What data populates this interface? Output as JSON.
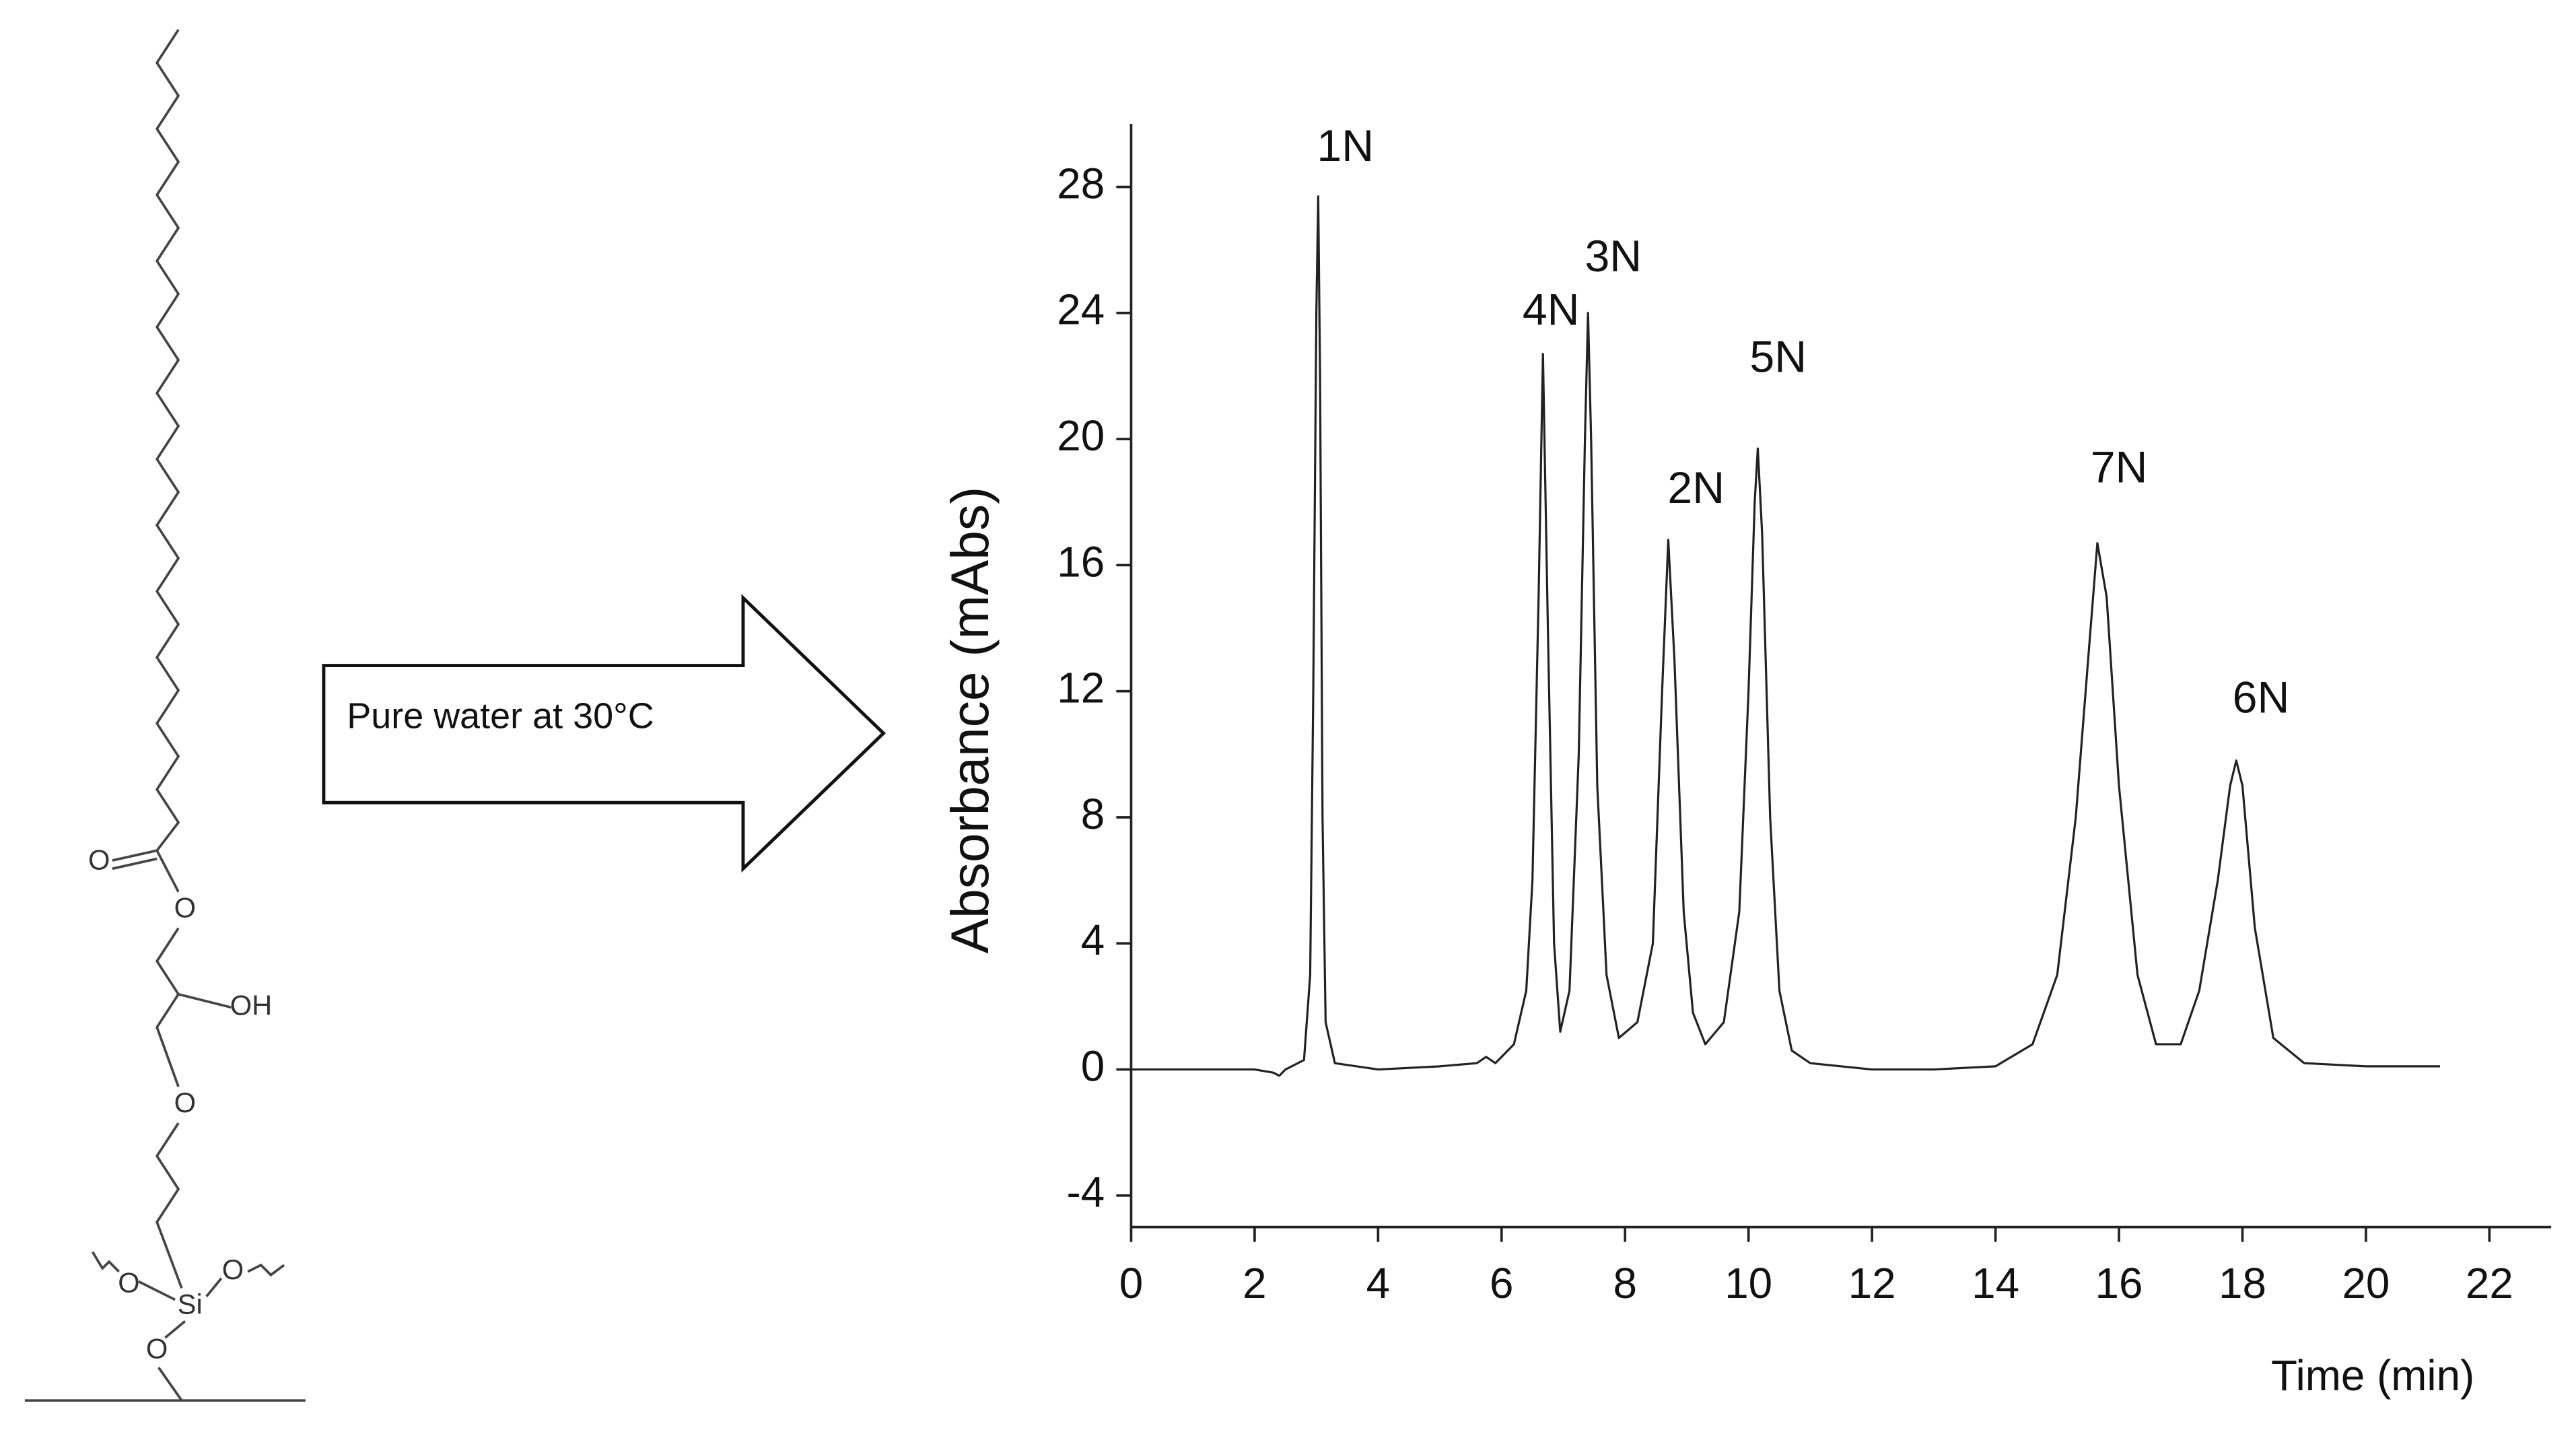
{
  "structure": {
    "atoms": [
      "O",
      "O",
      "OH",
      "O",
      "O",
      "Si",
      "O",
      "O"
    ]
  },
  "arrow_label": "Pure water at 30°C",
  "chart_data": {
    "type": "line",
    "x_label": "Time (min)",
    "y_label": "Absorbance (mAbs)",
    "xlim": [
      0,
      23
    ],
    "ylim": [
      -5,
      30
    ],
    "xticks": [
      0,
      2,
      4,
      6,
      8,
      10,
      12,
      14,
      16,
      18,
      20,
      22
    ],
    "yticks": [
      -4,
      0,
      4,
      8,
      12,
      16,
      20,
      24,
      28
    ],
    "series": [
      {
        "color": "#222222",
        "x": [
          0,
          1,
          2,
          2.3,
          2.4,
          2.5,
          2.8,
          2.9,
          2.95,
          3.0,
          3.03,
          3.06,
          3.1,
          3.15,
          3.3,
          4,
          5,
          5.6,
          5.75,
          5.9,
          6.2,
          6.4,
          6.5,
          6.6,
          6.67,
          6.75,
          6.85,
          6.95,
          7.1,
          7.25,
          7.35,
          7.4,
          7.45,
          7.55,
          7.7,
          7.9,
          8.2,
          8.45,
          8.6,
          8.7,
          8.8,
          8.95,
          9.1,
          9.3,
          9.6,
          9.85,
          10.0,
          10.1,
          10.15,
          10.22,
          10.35,
          10.5,
          10.7,
          11,
          12,
          13,
          14,
          14.6,
          15.0,
          15.3,
          15.5,
          15.65,
          15.8,
          16.0,
          16.3,
          16.6,
          17.0,
          17.3,
          17.6,
          17.8,
          17.9,
          18.0,
          18.2,
          18.5,
          19,
          20,
          21.2
        ],
        "values": [
          0,
          0,
          0,
          -0.1,
          -0.2,
          0,
          0.3,
          3,
          12,
          24,
          27.7,
          22,
          8,
          1.5,
          0.2,
          0,
          0.1,
          0.2,
          0.4,
          0.2,
          0.8,
          2.5,
          6,
          15,
          22.7,
          14,
          4,
          1.2,
          2.5,
          10,
          20,
          24,
          20,
          9,
          3,
          1,
          1.5,
          4,
          12,
          16.8,
          13,
          5,
          1.8,
          0.8,
          1.5,
          5,
          12,
          18,
          19.7,
          17,
          8,
          2.5,
          0.6,
          0.2,
          0,
          0,
          0.1,
          0.8,
          3,
          8,
          13,
          16.7,
          15,
          9,
          3,
          0.8,
          0.8,
          2.5,
          6,
          9,
          9.8,
          9,
          4.5,
          1,
          0.2,
          0.1,
          0.1
        ]
      }
    ],
    "annotations": [
      {
        "text": "1N",
        "x": 3.47,
        "y": 29.2
      },
      {
        "text": "4N",
        "x": 6.8,
        "y": 24.0
      },
      {
        "text": "3N",
        "x": 7.81,
        "y": 25.7
      },
      {
        "text": "2N",
        "x": 9.15,
        "y": 18.35
      },
      {
        "text": "5N",
        "x": 10.48,
        "y": 22.5
      },
      {
        "text": "7N",
        "x": 16.0,
        "y": 19.0
      },
      {
        "text": "6N",
        "x": 18.3,
        "y": 11.7
      }
    ]
  }
}
